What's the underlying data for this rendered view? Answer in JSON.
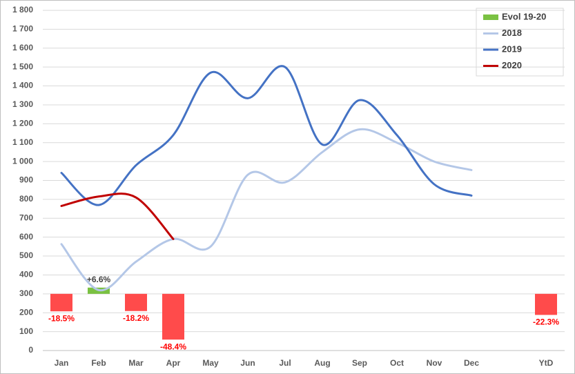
{
  "chart_data": {
    "type": "line",
    "categories": [
      "Jan",
      "Feb",
      "Mar",
      "Apr",
      "May",
      "Jun",
      "Jul",
      "Aug",
      "Sep",
      "Oct",
      "Nov",
      "Dec",
      null,
      "YtD"
    ],
    "ylim": [
      0,
      1800
    ],
    "yticks": [
      0,
      100,
      200,
      300,
      400,
      500,
      600,
      700,
      800,
      900,
      {
        "value": 1000,
        "label": "1 000"
      },
      {
        "value": 1100,
        "label": "1 100"
      },
      {
        "value": 1200,
        "label": "1 200"
      },
      {
        "value": 1300,
        "label": "1 300"
      },
      {
        "value": 1400,
        "label": "1 400"
      },
      {
        "value": 1500,
        "label": "1 500"
      },
      {
        "value": 1600,
        "label": "1 600"
      },
      {
        "value": 1700,
        "label": "1 700"
      },
      {
        "value": 1800,
        "label": "1 800"
      }
    ],
    "y2lim": [
      -60,
      300
    ],
    "grid": true,
    "legend": "top-right",
    "series": [
      {
        "name": "Evol 19-20",
        "type": "bar",
        "axis": "y2",
        "color": "#7ac142",
        "negative_color": "#ff4b4b",
        "values": [
          -18.5,
          6.6,
          -18.2,
          -48.4,
          null,
          null,
          null,
          null,
          null,
          null,
          null,
          null,
          null,
          -22.3
        ],
        "value_labels": [
          "-18.5%",
          "+6.6%",
          "-18.2%",
          "-48.4%",
          null,
          null,
          null,
          null,
          null,
          null,
          null,
          null,
          null,
          "-22.3%"
        ]
      },
      {
        "name": "2018",
        "color": "#b4c7e7",
        "values": [
          563,
          320,
          470,
          590,
          550,
          930,
          890,
          1050,
          1170,
          1100,
          1000,
          955,
          null,
          null
        ]
      },
      {
        "name": "2019",
        "color": "#4472c4",
        "values": [
          940,
          770,
          980,
          1140,
          1470,
          1335,
          1500,
          1090,
          1325,
          1140,
          880,
          820,
          null,
          null
        ]
      },
      {
        "name": "2020",
        "color": "#c00000",
        "values": [
          765,
          815,
          810,
          590,
          null,
          null,
          null,
          null,
          null,
          null,
          null,
          null,
          null,
          null
        ]
      }
    ]
  }
}
